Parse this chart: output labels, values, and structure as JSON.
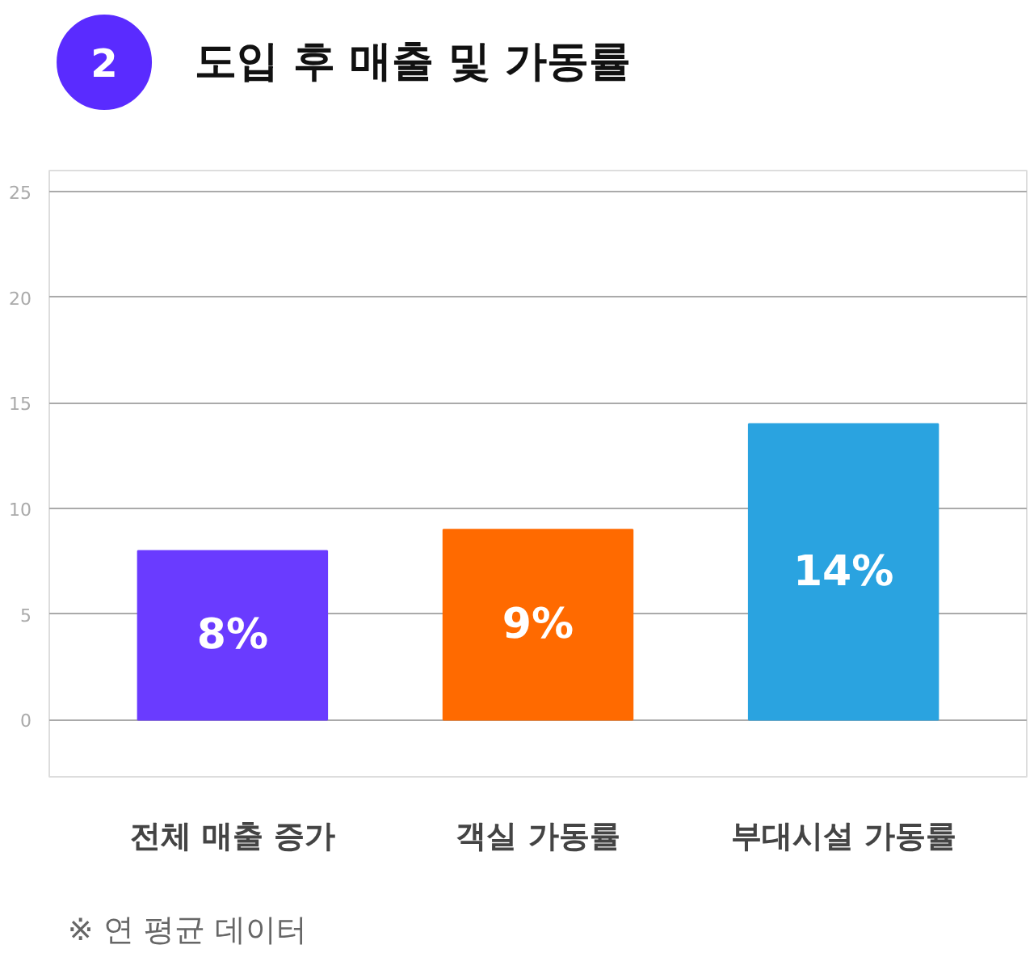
{
  "chart_data": {
    "type": "bar",
    "title": "도입 후 매출 및 가동률",
    "categories": [
      "전체 매출 증가",
      "객실 가동률",
      "부대시설 가동률"
    ],
    "values": [
      8,
      9,
      14
    ],
    "value_labels": [
      "8%",
      "9%",
      "14%"
    ],
    "colors": [
      "#6a3bff",
      "#ff6a00",
      "#2aa3e0"
    ],
    "ylim": [
      -2.7,
      26
    ],
    "yticks": [
      0,
      5,
      10,
      15,
      20,
      25
    ],
    "grid": "y",
    "annotations": [
      "2",
      "※ 연 평균 데이터"
    ]
  }
}
